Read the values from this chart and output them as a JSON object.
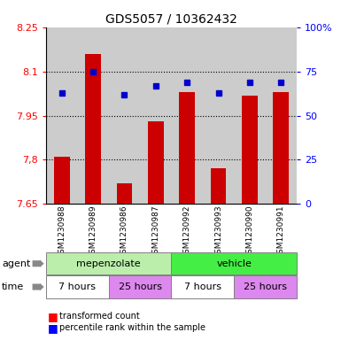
{
  "title": "GDS5057 / 10362432",
  "samples": [
    "GSM1230988",
    "GSM1230989",
    "GSM1230986",
    "GSM1230987",
    "GSM1230992",
    "GSM1230993",
    "GSM1230990",
    "GSM1230991"
  ],
  "bar_values": [
    7.81,
    8.16,
    7.72,
    7.93,
    8.03,
    7.77,
    8.02,
    8.03
  ],
  "dot_pct": [
    63,
    75,
    62,
    67,
    69,
    63,
    69,
    69
  ],
  "bar_color": "#cc0000",
  "dot_color": "#0000cc",
  "ylim_left": [
    7.65,
    8.25
  ],
  "ylim_right": [
    0,
    100
  ],
  "yticks_left": [
    7.65,
    7.8,
    7.95,
    8.1,
    8.25
  ],
  "ytick_labels_left": [
    "7.65",
    "7,8",
    "7.95",
    "8.1",
    "8.25"
  ],
  "yticks_right": [
    0,
    25,
    50,
    75,
    100
  ],
  "ytick_labels_right": [
    "0",
    "25",
    "50",
    "75",
    "100%"
  ],
  "grid_values": [
    7.8,
    7.95,
    8.1
  ],
  "bar_bottom": 7.65,
  "agent_labels": [
    "mepenzolate",
    "vehicle"
  ],
  "time_labels": [
    "7 hours",
    "25 hours",
    "7 hours",
    "25 hours"
  ],
  "agent_color_left": "#bbeeaa",
  "agent_color_right": "#44ee44",
  "time_color_white": "#ffffff",
  "time_color_pink": "#dd88ee",
  "legend_bar_label": "transformed count",
  "legend_dot_label": "percentile rank within the sample",
  "agent_row_label": "agent",
  "time_row_label": "time",
  "plot_bg_color": "#ffffff",
  "col_bg_color": "#cccccc",
  "title_fontsize": 10,
  "tick_fontsize": 8,
  "label_fontsize": 8,
  "bar_width": 0.5
}
